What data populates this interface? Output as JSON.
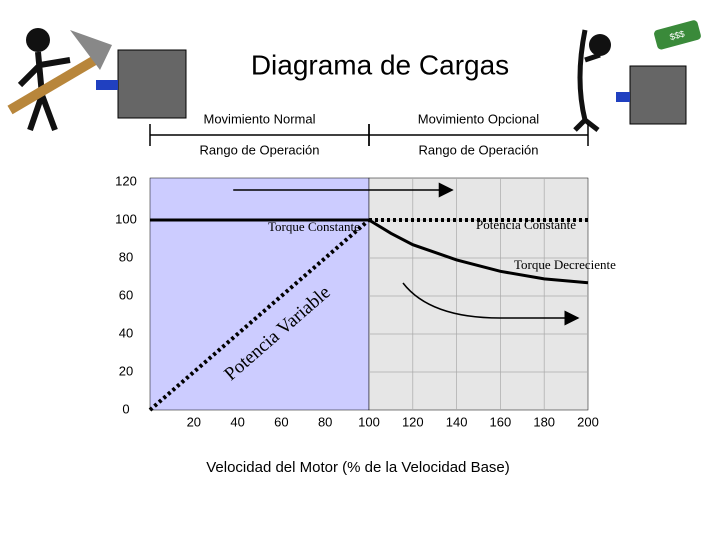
{
  "chart_data": {
    "type": "line",
    "title": "Diagrama de Cargas",
    "badge": "$$$",
    "regions": [
      {
        "label": "Movimiento Normal",
        "range_label": "Rango de Operación",
        "x": [
          0,
          100
        ],
        "color": "#ccccff"
      },
      {
        "label": "Movimiento Opcional",
        "range_label": "Rango de Operación",
        "x": [
          100,
          200
        ],
        "color": "#e6e6e6"
      }
    ],
    "x_label": "Velocidad del Motor (% de la Velocidad Base)",
    "xlim": [
      0,
      200
    ],
    "ylim": [
      0,
      120
    ],
    "xticks": [
      20,
      40,
      60,
      80,
      100,
      120,
      140,
      160,
      180,
      200
    ],
    "yticks": [
      0,
      20,
      40,
      60,
      80,
      100,
      120
    ],
    "grid": true,
    "series": [
      {
        "name": "Torque Constante",
        "color": "#000000",
        "style": "solid",
        "x": [
          0,
          100
        ],
        "values": [
          100,
          100
        ]
      },
      {
        "name": "Potencia Constante",
        "color": "#000000",
        "style": "dotted",
        "x": [
          100,
          200
        ],
        "values": [
          100,
          100
        ]
      },
      {
        "name": "Potencia Variable",
        "color": "#000000",
        "style": "dotted",
        "x": [
          0,
          100
        ],
        "values": [
          0,
          100
        ]
      },
      {
        "name": "Torque Decreciente",
        "color": "#000000",
        "style": "solid",
        "x": [
          100,
          110,
          120,
          140,
          160,
          180,
          200
        ],
        "values": [
          100,
          93,
          87,
          79,
          73,
          69,
          67
        ]
      }
    ]
  }
}
